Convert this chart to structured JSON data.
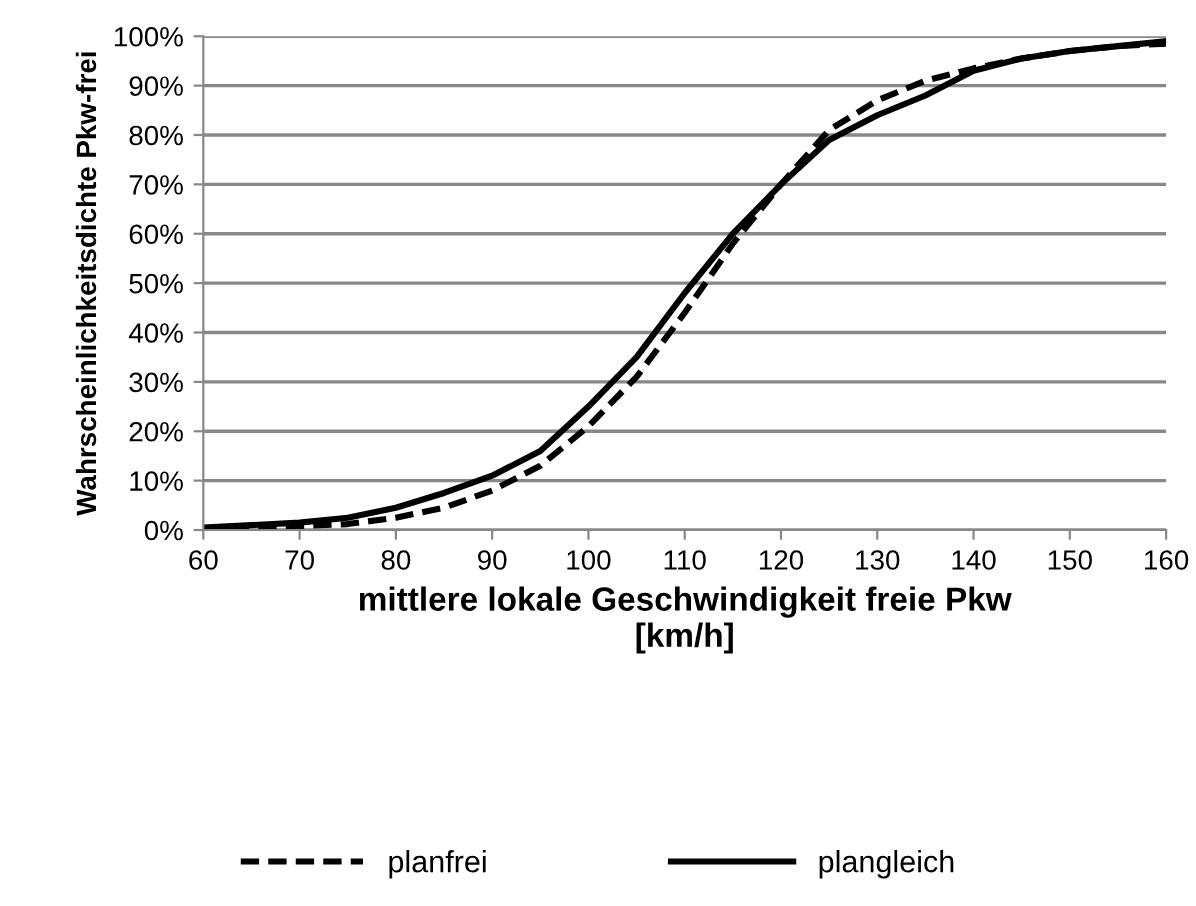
{
  "chart_data": {
    "type": "line",
    "xlabel": "mittlere lokale Geschwindigkeit freie Pkw\n[km/h]",
    "ylabel": "Wahrscheinlichkeitsdichte Pkw-frei",
    "xlim": [
      60,
      160
    ],
    "xticks": [
      60,
      70,
      80,
      90,
      100,
      110,
      120,
      130,
      140,
      150,
      160
    ],
    "ylim": [
      0,
      100
    ],
    "yticks": [
      {
        "value": 0,
        "label": "0%"
      },
      {
        "value": 10,
        "label": "10%"
      },
      {
        "value": 20,
        "label": "20%"
      },
      {
        "value": 30,
        "label": "30%"
      },
      {
        "value": 40,
        "label": "40%"
      },
      {
        "value": 50,
        "label": "50%"
      },
      {
        "value": 60,
        "label": "60%"
      },
      {
        "value": 70,
        "label": "70%"
      },
      {
        "value": 80,
        "label": "80%"
      },
      {
        "value": 90,
        "label": "90%"
      },
      {
        "value": 100,
        "label": "100%"
      }
    ],
    "grid": "y",
    "legend": "bottom",
    "marker": "none",
    "x": [
      60,
      70,
      75,
      80,
      85,
      90,
      95,
      100,
      105,
      110,
      115,
      120,
      125,
      130,
      135,
      140,
      145,
      150,
      155,
      160
    ],
    "series": [
      {
        "name": "planfrei",
        "color": "#000000",
        "line_style": "dashed",
        "values": [
          0.3,
          0.8,
          1.2,
          2.5,
          4.5,
          8,
          13,
          21,
          31,
          44,
          58,
          70,
          81,
          87,
          91,
          93.5,
          95.5,
          97,
          98,
          98.5
        ]
      },
      {
        "name": "plangleich",
        "color": "#000000",
        "line_style": "solid",
        "values": [
          0.5,
          1.5,
          2.5,
          4.5,
          7.5,
          11,
          16,
          25,
          35,
          48,
          60,
          70,
          79,
          84,
          88,
          93,
          95.5,
          97,
          98,
          99
        ]
      }
    ]
  }
}
